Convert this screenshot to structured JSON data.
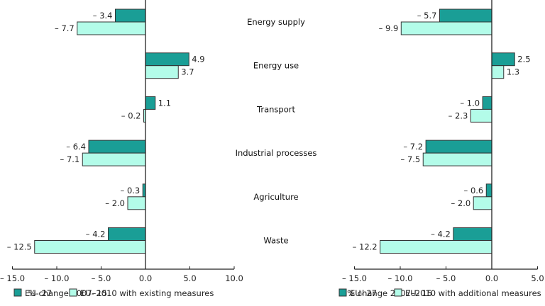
{
  "chart_data": [
    {
      "type": "bar",
      "orientation": "horizontal",
      "panel": "left",
      "categories": [
        "Energy supply",
        "Energy use",
        "Transport",
        "Industrial processes",
        "Agriculture",
        "Waste"
      ],
      "series": [
        {
          "name": "EU- 27",
          "values": [
            -3.4,
            4.9,
            1.1,
            -6.4,
            -0.3,
            -4.2
          ],
          "labels": [
            "– 3.4",
            "4.9",
            "1.1",
            "– 6.4",
            "– 0.3",
            "– 4.2"
          ]
        },
        {
          "name": "EU- 15",
          "values": [
            -7.7,
            3.7,
            -0.2,
            -7.1,
            -2.0,
            -12.5
          ],
          "labels": [
            "– 7.7",
            "3.7",
            "– 0.2",
            "– 7.1",
            "– 2.0",
            "– 12.5"
          ]
        }
      ],
      "xlabel": "% change 2007–2010 with existing measures",
      "xlim": [
        -15,
        10
      ],
      "xticks": [
        -15,
        -10,
        -5,
        0,
        5,
        10
      ],
      "xtick_labels": [
        "– 15.0",
        "– 10.0",
        "– 5.0",
        "0.0",
        "5.0",
        "10.0"
      ],
      "grid": false,
      "legend": "bottom-left"
    },
    {
      "type": "bar",
      "orientation": "horizontal",
      "panel": "right",
      "categories": [
        "Energy supply",
        "Energy use",
        "Transport",
        "Industrial processes",
        "Agriculture",
        "Waste"
      ],
      "series": [
        {
          "name": "EU- 27",
          "values": [
            -5.7,
            2.5,
            -1.0,
            -7.2,
            -0.6,
            -4.2
          ],
          "labels": [
            "– 5.7",
            "2.5",
            "– 1.0",
            "– 7.2",
            "– 0.6",
            "– 4.2"
          ]
        },
        {
          "name": "EU- 15",
          "values": [
            -9.9,
            1.3,
            -2.3,
            -7.5,
            -2.0,
            -12.2
          ],
          "labels": [
            "– 9.9",
            "1.3",
            "– 2.3",
            "– 7.5",
            "– 2.0",
            "– 12.2"
          ]
        }
      ],
      "xlabel": "% change 2007–2010 with additional measures",
      "xlim": [
        -15,
        5
      ],
      "xticks": [
        -15,
        -10,
        -5,
        0,
        5
      ],
      "xtick_labels": [
        "– 15.0",
        "– 10.0",
        "– 5.0",
        "0.0",
        "5.0"
      ],
      "grid": false,
      "legend": "bottom-left"
    }
  ],
  "colors": {
    "EU- 27": "#1a9e96",
    "EU- 15": "#b3fce9",
    "bar_stroke": "#333333",
    "axis": "#222222"
  },
  "category_labels": [
    "Energy supply",
    "Energy use",
    "Transport",
    "Industrial processes",
    "Agriculture",
    "Waste"
  ]
}
